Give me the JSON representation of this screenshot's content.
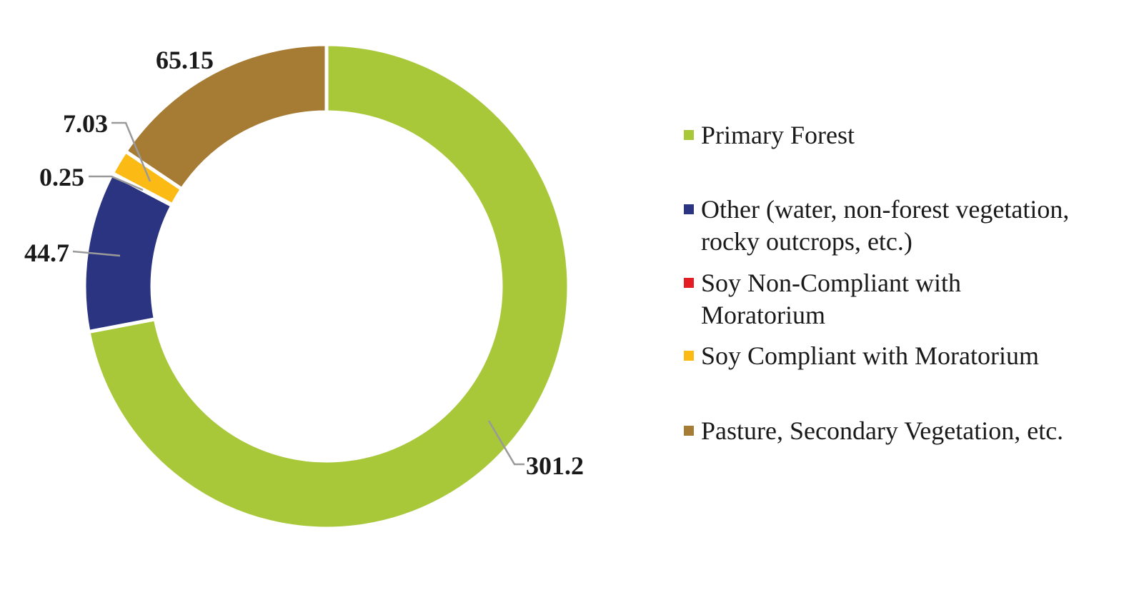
{
  "chart_data": {
    "type": "pie",
    "style": "donut",
    "legend_position": "right",
    "series": [
      {
        "name": "Primary Forest",
        "value": 301.2,
        "color": "#a8c83a"
      },
      {
        "name": "Other (water, non-forest vegetation, rocky outcrops, etc.)",
        "value": 44.7,
        "color": "#2b3480"
      },
      {
        "name": "Soy Non-Compliant with Moratorium",
        "value": 0.25,
        "color": "#e31d23"
      },
      {
        "name": "Soy Compliant with Moratorium",
        "value": 7.03,
        "color": "#fcbb14"
      },
      {
        "name": "Pasture, Secondary Vegetation, etc.",
        "value": 65.15,
        "color": "#a67b34"
      }
    ],
    "data_labels": [
      "301.2",
      "44.7",
      "0.25",
      "7.03",
      "65.15"
    ],
    "legend": [
      {
        "lines": [
          "Primary Forest"
        ]
      },
      {
        "lines": [
          "Other (water, non-forest vegetation,",
          "rocky outcrops, etc.)"
        ]
      },
      {
        "lines": [
          "Soy Non-Compliant with",
          "Moratorium"
        ]
      },
      {
        "lines": [
          "Soy Compliant with Moratorium"
        ]
      },
      {
        "lines": [
          "Pasture, Secondary Vegetation, etc."
        ]
      }
    ]
  }
}
